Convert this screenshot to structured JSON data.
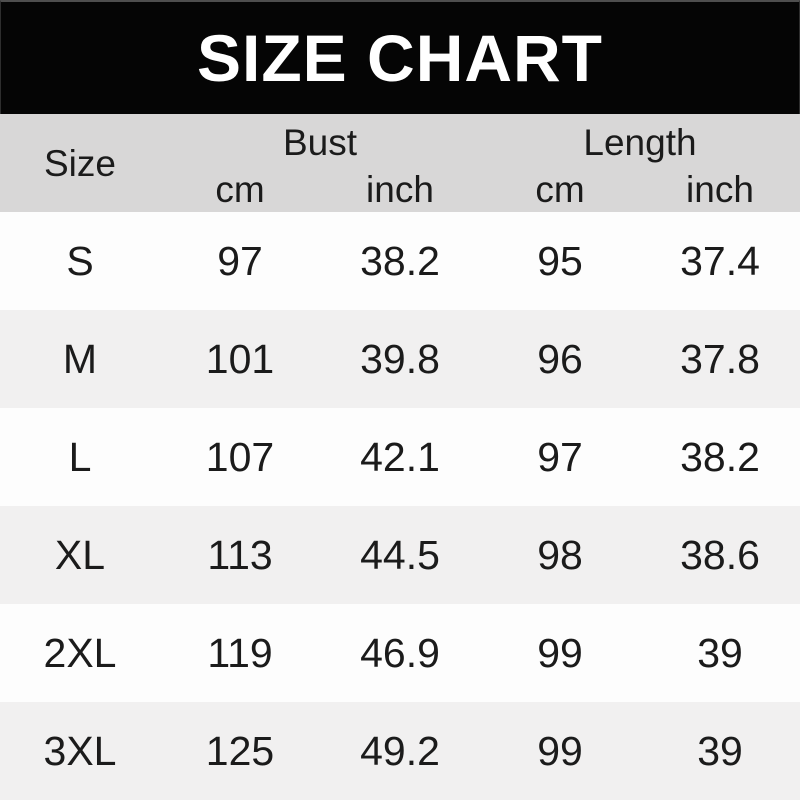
{
  "banner": {
    "title": "SIZE CHART"
  },
  "table": {
    "size_label": "Size",
    "groups": [
      {
        "label": "Bust",
        "units": [
          "cm",
          "inch"
        ]
      },
      {
        "label": "Length",
        "units": [
          "cm",
          "inch"
        ]
      }
    ]
  },
  "chart_data": {
    "type": "table",
    "title": "SIZE CHART",
    "columns": [
      "Size",
      "Bust (cm)",
      "Bust (inch)",
      "Length (cm)",
      "Length (inch)"
    ],
    "rows": [
      [
        "S",
        "97",
        "38.2",
        "95",
        "37.4"
      ],
      [
        "M",
        "101",
        "39.8",
        "96",
        "37.8"
      ],
      [
        "L",
        "107",
        "42.1",
        "97",
        "38.2"
      ],
      [
        "XL",
        "113",
        "44.5",
        "98",
        "38.6"
      ],
      [
        "2XL",
        "119",
        "46.9",
        "99",
        "39"
      ],
      [
        "3XL",
        "125",
        "49.2",
        "99",
        "39"
      ]
    ]
  },
  "colors": {
    "banner_bg": "#050505",
    "banner_text": "#ffffff",
    "header_bg": "#d8d7d7",
    "row_white": "#fdfdfd",
    "row_alt": "#f1f0f0",
    "text": "#1b1b1b"
  }
}
